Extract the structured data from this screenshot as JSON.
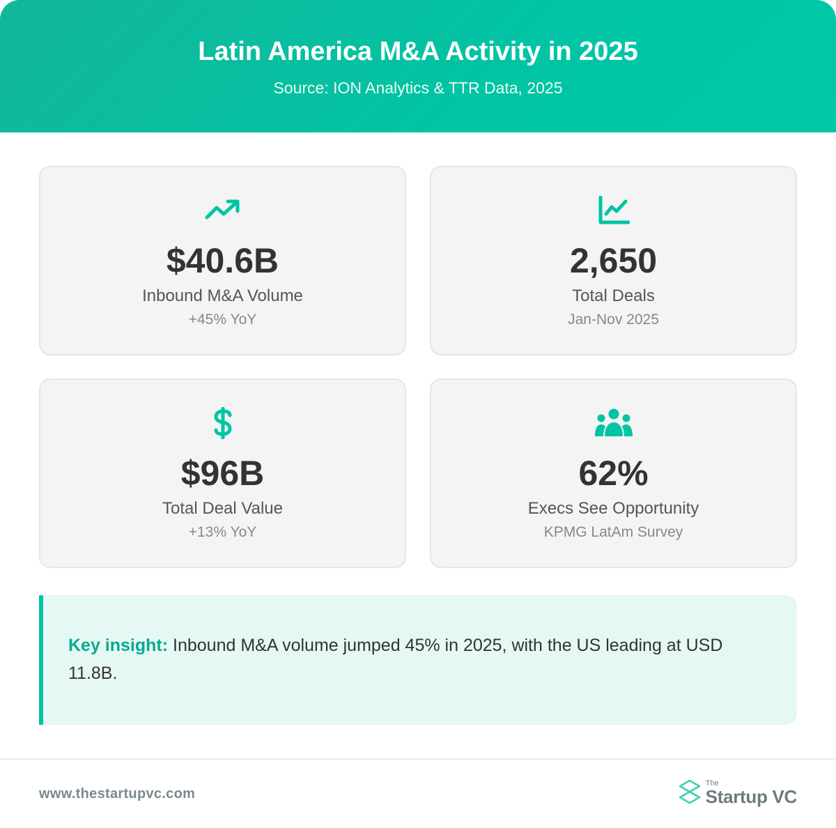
{
  "header": {
    "title": "Latin America M&A Activity in 2025",
    "subtitle": "Source: ION Analytics & TTR Data, 2025"
  },
  "colors": {
    "accent": "#00c4a4",
    "card_bg": "#f4f4f4",
    "insight_bg": "#e6f8f4"
  },
  "cards": [
    {
      "icon": "trending-up-icon",
      "value": "$40.6B",
      "label": "Inbound M&A Volume",
      "note": "+45% YoY"
    },
    {
      "icon": "line-chart-icon",
      "value": "2,650",
      "label": "Total Deals",
      "note": "Jan-Nov 2025"
    },
    {
      "icon": "dollar-sign-icon",
      "value": "$96B",
      "label": "Total Deal Value",
      "note": "+13% YoY"
    },
    {
      "icon": "people-group-icon",
      "value": "62%",
      "label": "Execs See Opportunity",
      "note": "KPMG LatAm Survey"
    }
  ],
  "insight": {
    "label": "Key insight:",
    "text": " Inbound M&A volume jumped 45% in 2025, with the US leading at USD 11.8B."
  },
  "footer": {
    "url": "www.thestartupvc.com",
    "brand_small": "The",
    "brand_name": "Startup VC"
  }
}
